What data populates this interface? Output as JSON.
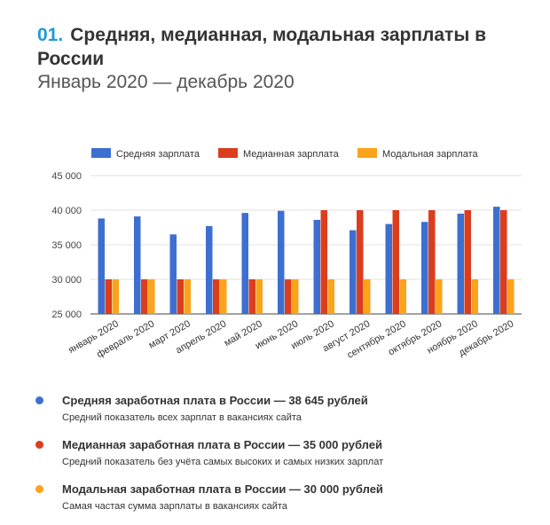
{
  "header": {
    "number": "01.",
    "title": "Средняя, медианная, модальная зарплаты в России",
    "subtitle": "Январь 2020 — декабрь 2020"
  },
  "chart_data": {
    "type": "bar",
    "categories": [
      "январь 2020",
      "февраль 2020",
      "март 2020",
      "апрель 2020",
      "май 2020",
      "июнь 2020",
      "июль 2020",
      "август 2020",
      "сентябрь 2020",
      "октябрь 2020",
      "ноябрь 2020",
      "декабрь 2020"
    ],
    "series": [
      {
        "name": "Средняя зарплата",
        "color": "#3c6fcf",
        "values": [
          38800,
          39100,
          36500,
          37700,
          39600,
          39900,
          38600,
          37100,
          38000,
          38300,
          39500,
          40500
        ]
      },
      {
        "name": "Медианная зарплата",
        "color": "#db3d1d",
        "values": [
          30000,
          30000,
          30000,
          30000,
          30000,
          30000,
          40000,
          40000,
          40000,
          40000,
          40000,
          40000
        ]
      },
      {
        "name": "Модальная зарплата",
        "color": "#fba31b",
        "values": [
          30000,
          30000,
          30000,
          30000,
          30000,
          30000,
          30000,
          30000,
          30000,
          30000,
          30000,
          30000
        ]
      }
    ],
    "ylim": [
      25000,
      45000
    ],
    "yticks": [
      "25 000",
      "30 000",
      "35 000",
      "40 000",
      "45 000"
    ],
    "ytick_values": [
      25000,
      30000,
      35000,
      40000,
      45000
    ],
    "grid": true,
    "legend_position": "top"
  },
  "notes": [
    {
      "title": "Средняя заработная плата в России — 38 645 рублей",
      "description": "Средний показатель всех зарплат в вакансиях сайта",
      "color": "#3c6fcf"
    },
    {
      "title": "Медианная заработная плата в России — 35 000 рублей",
      "description": "Средний показатель без учёта самых высоких и самых низких зарплат",
      "color": "#db3d1d"
    },
    {
      "title": "Модальная заработная плата в России — 30 000 рублей",
      "description": "Самая частая сумма зарплаты в вакансиях сайта",
      "color": "#fba31b"
    }
  ]
}
